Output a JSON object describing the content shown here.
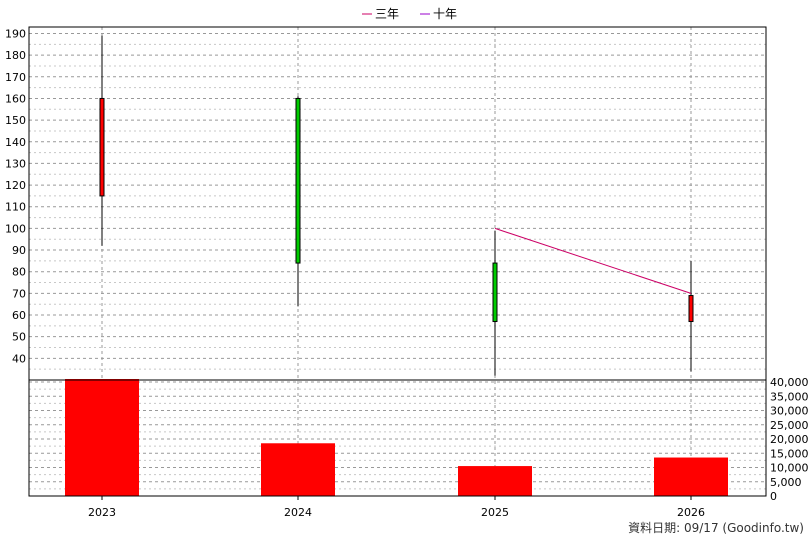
{
  "chart_data": {
    "type": "candlestick",
    "categories": [
      "2023",
      "2024",
      "2025",
      "2026"
    ],
    "price_axis": {
      "ylim": [
        30,
        193
      ],
      "ticks": [
        40,
        50,
        60,
        70,
        80,
        90,
        100,
        110,
        120,
        130,
        140,
        150,
        160,
        170,
        180,
        190
      ]
    },
    "candles": [
      {
        "x": "2023",
        "open": 115,
        "high": 189,
        "low": 92,
        "close": 160,
        "color": "#ff0000"
      },
      {
        "x": "2024",
        "open": 160,
        "high": 161,
        "low": 64,
        "close": 84,
        "color": "#00cc00"
      },
      {
        "x": "2025",
        "open": 57,
        "high": 99,
        "low": 32,
        "close": 84,
        "color": "#00cc00"
      },
      {
        "x": "2026",
        "open": 57,
        "high": 85,
        "low": 34,
        "close": 69,
        "color": "#ff0000"
      }
    ],
    "series": [
      {
        "name": "三年",
        "color": "#cc0066",
        "values": [
          null,
          null,
          100,
          70
        ]
      },
      {
        "name": "十年",
        "color": "#9900cc",
        "values": [
          null,
          null,
          null,
          null
        ]
      }
    ],
    "volume": {
      "values": [
        41500,
        18500,
        10500,
        13500
      ],
      "color": "#ff0000",
      "ylim": [
        0,
        40000
      ],
      "tick_values": [
        0,
        5000,
        10000,
        15000,
        20000,
        25000,
        30000,
        35000,
        40000
      ],
      "tick_labels": [
        "0",
        "5,000",
        "10,000",
        "15,000",
        "20,000",
        "25,000",
        "30,000",
        "35,000",
        "40,000"
      ]
    },
    "grid": true,
    "legend_placement": "top-center"
  },
  "footer": "資料日期: 09/17  (Goodinfo.tw)"
}
